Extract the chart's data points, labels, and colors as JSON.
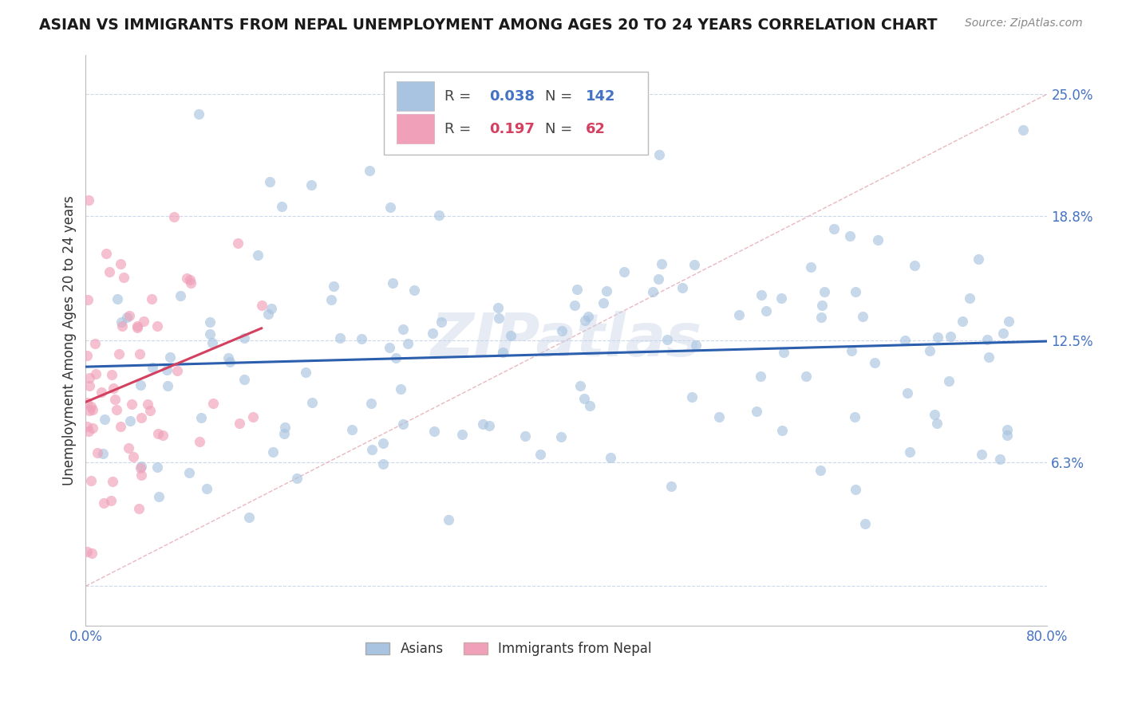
{
  "title": "ASIAN VS IMMIGRANTS FROM NEPAL UNEMPLOYMENT AMONG AGES 20 TO 24 YEARS CORRELATION CHART",
  "source": "Source: ZipAtlas.com",
  "ylabel": "Unemployment Among Ages 20 to 24 years",
  "xlim": [
    0.0,
    0.8
  ],
  "ylim": [
    -0.02,
    0.27
  ],
  "yticks": [
    0.0,
    0.063,
    0.125,
    0.188,
    0.25
  ],
  "ytick_labels": [
    "",
    "6.3%",
    "12.5%",
    "18.8%",
    "25.0%"
  ],
  "xtick_positions": [
    0.0,
    0.1,
    0.2,
    0.3,
    0.4,
    0.5,
    0.6,
    0.7,
    0.8
  ],
  "xtick_labels": [
    "0.0%",
    "",
    "",
    "",
    "",
    "",
    "",
    "",
    "80.0%"
  ],
  "asian_color": "#a8c4e0",
  "nepal_color": "#f0a0b8",
  "asian_line_color": "#2b5fad",
  "nepal_line_color": "#d44060",
  "diag_line_color": "#e8b0b8",
  "background_color": "#ffffff",
  "grid_color": "#c8d4e8",
  "title_color": "#1a1a1a",
  "axis_label_color": "#333333",
  "tick_color": "#4472c4",
  "legend_r_color1": "#4472c4",
  "legend_r_color2": "#d44060",
  "watermark": "ZIPatlas",
  "seed": 42,
  "asian_R": 0.038,
  "nepal_R": 0.197,
  "asian_N": 142,
  "nepal_N": 62
}
